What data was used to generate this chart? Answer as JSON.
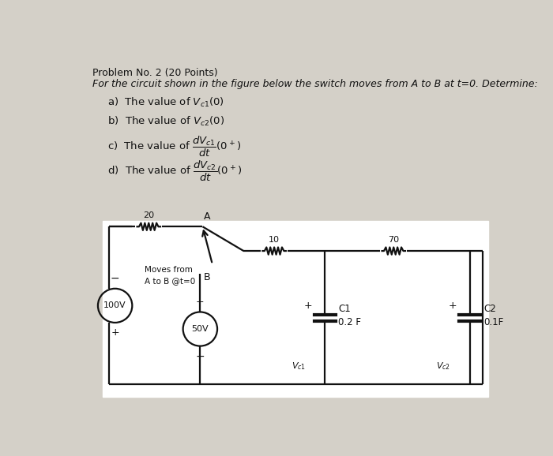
{
  "title_line1": "Problem No. 2 (20 Points)",
  "title_line2": "For the circuit shown in the figure below the switch moves from A to B at t=0. Determine:",
  "bg_color": "#d4d0c8",
  "text_color": "#111111",
  "r20": "20",
  "r10": "10",
  "r70": "70",
  "src100": "100V",
  "src50": "50V",
  "c1_label": "C1",
  "c1_val": "0.2 F",
  "c2_label": "C2",
  "c2_val": "0.1F",
  "node_a": "A",
  "node_b": "B",
  "switch_text": "Moves from\nA to B @t=0"
}
